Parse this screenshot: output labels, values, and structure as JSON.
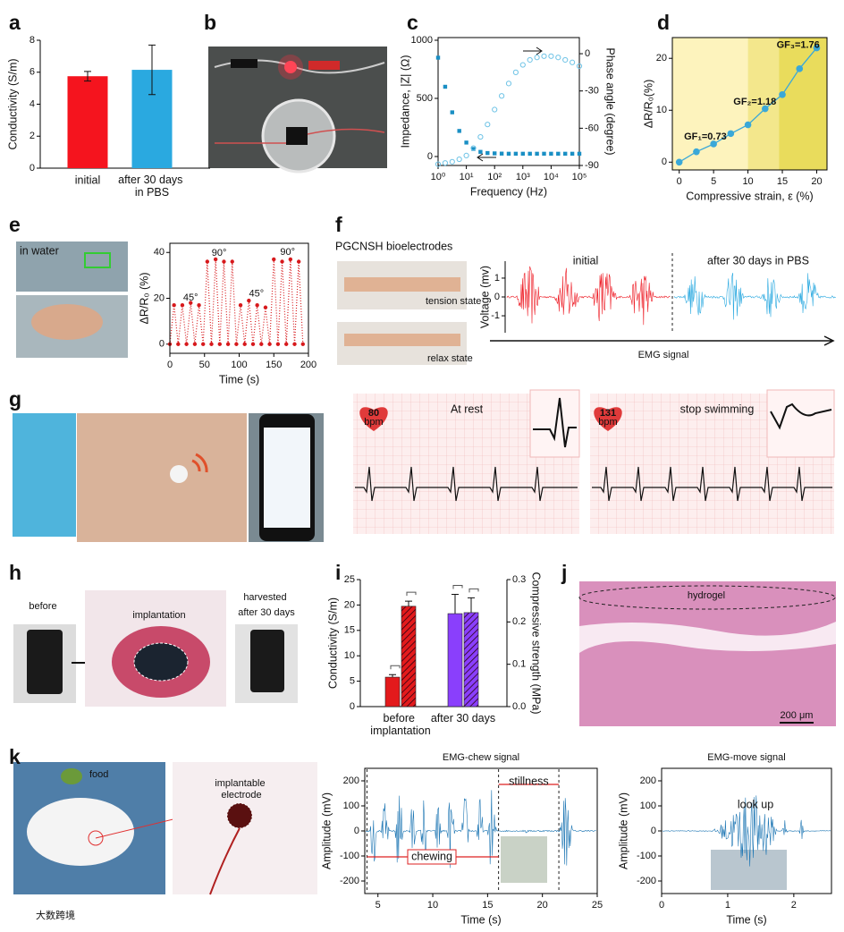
{
  "panel_labels": [
    "a",
    "b",
    "c",
    "d",
    "e",
    "f",
    "g",
    "h",
    "i",
    "j",
    "k"
  ],
  "photo_text": {
    "e_water": "in water",
    "f_title": "PGCNSH bioelectrodes",
    "f_tension": "tension state",
    "f_relax": "relax state",
    "g_rest": "At rest",
    "g_swim": "stop swimming",
    "g_bpm_rest": 80,
    "g_bpm_swim": 131,
    "g_unit": "bpm",
    "h_before": "before",
    "h_implant": "implantation",
    "h_harvest": "harvested after 30 days",
    "j_hydrogel": "hydrogel",
    "j_scale": "200 μm",
    "k_food": "food",
    "k_electrode": "implantable electrode"
  },
  "watermark": "大数跨境",
  "chart_data": [
    {
      "type": "bar",
      "ylabel": "Conductivity (S/m)",
      "categories": [
        "initial",
        "after 30 days in PBS"
      ],
      "values": [
        5.75,
        6.15
      ],
      "errors": [
        0.3,
        1.55
      ],
      "colors": [
        "#f5141e",
        "#2aa9e0"
      ],
      "ylim": [
        0,
        8
      ],
      "yticks": [
        0,
        2,
        4,
        6,
        8
      ]
    },
    {
      "type": "scatter",
      "xlabel": "Frequency (Hz)",
      "ylabel": "Impedance, |Z| (Ω)",
      "y2label": "Phase angle (degree)",
      "log_x": true,
      "x": [
        1,
        1.78,
        3.16,
        5.62,
        10,
        17.8,
        31.6,
        56.2,
        100,
        178,
        316,
        562,
        1000,
        1778,
        3162,
        5623,
        10000,
        17783,
        31623,
        56234,
        100000
      ],
      "series": [
        {
          "marker": "square",
          "color": "#1a8fc4",
          "values": [
            850,
            600,
            380,
            220,
            120,
            65,
            40,
            30,
            27,
            25,
            24,
            24,
            24,
            24,
            24,
            24,
            24,
            24,
            24,
            24,
            24
          ]
        },
        {
          "marker": "circle",
          "axis": "y2",
          "color": "#6ec3e6",
          "values": [
            -89,
            -88,
            -87,
            -85,
            -82,
            -76,
            -67,
            -57,
            -45,
            -34,
            -24,
            -15,
            -9,
            -5,
            -3,
            -2,
            -2,
            -3,
            -5,
            -7,
            -10
          ]
        }
      ],
      "xlim": [
        1,
        100000
      ],
      "xticks": [
        {
          "value": 1,
          "label": "10⁰"
        },
        {
          "value": 10,
          "label": "10¹"
        },
        {
          "value": 100,
          "label": "10²"
        },
        {
          "value": 1000,
          "label": "10³"
        },
        {
          "value": 10000,
          "label": "10⁴"
        },
        {
          "value": 100000,
          "label": "10⁵"
        }
      ],
      "ylim": [
        -77,
        1023
      ],
      "yticks": [
        0,
        500,
        1000
      ],
      "y2lim": [
        -90,
        13
      ],
      "y2ticks": [
        0,
        -30,
        -60,
        -90
      ]
    },
    {
      "type": "line",
      "xlabel": "Compressive strain, ε (%)",
      "ylabel": "ΔR/R₀(%)",
      "x": [
        0,
        2.5,
        5,
        7.5,
        10,
        12.5,
        15,
        17.5,
        20
      ],
      "values": [
        0,
        2,
        3.5,
        5.5,
        7.2,
        10.3,
        13,
        18,
        22
      ],
      "color": "#3aa8d8",
      "regions": [
        {
          "x": [
            -1,
            10
          ],
          "color": "#fdf3bd"
        },
        {
          "x": [
            10,
            14.5
          ],
          "color": "#f3e78c"
        },
        {
          "x": [
            14.5,
            21.5
          ],
          "color": "#e9dc5c"
        }
      ],
      "annotations": [
        "GF₁=0.73",
        "GF₂=1.18",
        "GF₃=1.76"
      ],
      "xlim": [
        -1,
        21.5
      ],
      "xticks": [
        0,
        5,
        10,
        15,
        20
      ],
      "ylim": [
        -1.5,
        24
      ],
      "yticks": [
        0,
        10,
        20
      ]
    },
    {
      "type": "line",
      "style": "dotted",
      "xlabel": "Time (s)",
      "ylabel": "ΔR/R₀ (%)",
      "x": [
        0,
        6,
        12,
        18,
        24,
        30,
        36,
        42,
        48,
        54,
        60,
        66,
        72,
        78,
        84,
        90,
        96,
        102,
        108,
        114,
        120,
        126,
        132,
        138,
        144,
        150,
        156,
        162,
        168,
        174,
        180,
        186,
        192
      ],
      "values": [
        0,
        17,
        0,
        17,
        0,
        18,
        0,
        17,
        0,
        36,
        0,
        37,
        0,
        36,
        0,
        36,
        0,
        17,
        0,
        19,
        0,
        17,
        0,
        16,
        0,
        37,
        0,
        36,
        0,
        37,
        0,
        36,
        0
      ],
      "color": "#d7191c",
      "annotations": [
        "45°",
        "90°",
        "45°",
        "90°"
      ],
      "xlim": [
        0,
        200
      ],
      "xticks": [
        0,
        50,
        100,
        150,
        200
      ],
      "ylim": [
        -4,
        44
      ],
      "yticks": [
        0,
        20,
        40
      ]
    },
    {
      "type": "signal",
      "ylabel": "Voltage (mv)",
      "xlabel": "EMG signal",
      "series": [
        {
          "name": "initial",
          "color": "#ee1c25"
        },
        {
          "name": "after 30 days in PBS",
          "color": "#2aa9e0"
        }
      ],
      "ylim": [
        -1.9,
        1.9
      ],
      "yticks": [
        1,
        0,
        -1
      ]
    },
    {
      "type": "bar",
      "ylabel": "Conductivity (S/m)",
      "y2label": "Compressive strength (MPa)",
      "categories": [
        "before implantation",
        "after 30 days"
      ],
      "series": [
        {
          "colors": [
            "#e31a1c",
            "#8a3ffc"
          ],
          "values": [
            5.8,
            18.3
          ],
          "errors": [
            0.5,
            3.8
          ]
        },
        {
          "axis": "y2",
          "hatch": true,
          "colors": [
            "#e31a1c",
            "#8a3ffc"
          ],
          "values": [
            0.237,
            0.222
          ],
          "errors": [
            0.012,
            0.035
          ]
        }
      ],
      "ylim": [
        0,
        25
      ],
      "yticks": [
        0,
        5,
        10,
        15,
        20,
        25
      ],
      "y2lim": [
        0,
        0.3
      ],
      "y2ticks": [
        {
          "value": 0,
          "label": "0.0"
        },
        0.1,
        0.2,
        0.3
      ]
    },
    {
      "type": "signal",
      "title": "EMG-chew signal",
      "xlabel": "Time (s)",
      "ylabel": "Amplitude (mV)",
      "annotations": [
        "stillness",
        "chewing"
      ],
      "series": [
        {
          "color": "#1f77b4"
        }
      ],
      "xlim": [
        3.8,
        25
      ],
      "xticks": [
        5,
        10,
        15,
        20,
        25
      ],
      "ylim": [
        -250,
        250
      ],
      "yticks": [
        200,
        100,
        0,
        -100,
        -200
      ]
    },
    {
      "type": "signal",
      "title": "EMG-move signal",
      "xlabel": "Time (s)",
      "ylabel": "Amplitude (mV)",
      "annotations": [
        "look up"
      ],
      "series": [
        {
          "color": "#1f77b4"
        }
      ],
      "xlim": [
        0,
        2.57
      ],
      "xticks": [
        0,
        1,
        2
      ],
      "ylim": [
        -250,
        250
      ],
      "yticks": [
        200,
        100,
        0,
        -100,
        -200
      ]
    }
  ]
}
